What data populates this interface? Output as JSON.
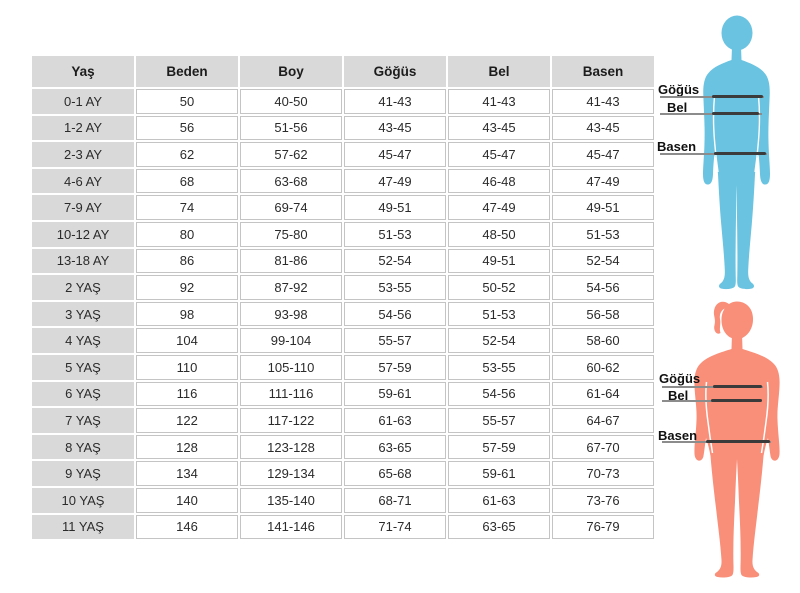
{
  "chart_data": {
    "type": "table",
    "columns": [
      "Yaş",
      "Beden",
      "Boy",
      "Göğüs",
      "Bel",
      "Basen"
    ],
    "rows": [
      [
        "0-1 AY",
        "50",
        "40-50",
        "41-43",
        "41-43",
        "41-43"
      ],
      [
        "1-2 AY",
        "56",
        "51-56",
        "43-45",
        "43-45",
        "43-45"
      ],
      [
        "2-3 AY",
        "62",
        "57-62",
        "45-47",
        "45-47",
        "45-47"
      ],
      [
        "4-6 AY",
        "68",
        "63-68",
        "47-49",
        "46-48",
        "47-49"
      ],
      [
        "7-9 AY",
        "74",
        "69-74",
        "49-51",
        "47-49",
        "49-51"
      ],
      [
        "10-12 AY",
        "80",
        "75-80",
        "51-53",
        "48-50",
        "51-53"
      ],
      [
        "13-18 AY",
        "86",
        "81-86",
        "52-54",
        "49-51",
        "52-54"
      ],
      [
        "2 YAŞ",
        "92",
        "87-92",
        "53-55",
        "50-52",
        "54-56"
      ],
      [
        "3 YAŞ",
        "98",
        "93-98",
        "54-56",
        "51-53",
        "56-58"
      ],
      [
        "4 YAŞ",
        "104",
        "99-104",
        "55-57",
        "52-54",
        "58-60"
      ],
      [
        "5 YAŞ",
        "110",
        "105-110",
        "57-59",
        "53-55",
        "60-62"
      ],
      [
        "6 YAŞ",
        "116",
        "111-116",
        "59-61",
        "54-56",
        "61-64"
      ],
      [
        "7 YAŞ",
        "122",
        "117-122",
        "61-63",
        "55-57",
        "64-67"
      ],
      [
        "8 YAŞ",
        "128",
        "123-128",
        "63-65",
        "57-59",
        "67-70"
      ],
      [
        "9 YAŞ",
        "134",
        "129-134",
        "65-68",
        "59-61",
        "70-73"
      ],
      [
        "10 YAŞ",
        "140",
        "135-140",
        "68-71",
        "61-63",
        "73-76"
      ],
      [
        "11 YAŞ",
        "146",
        "141-146",
        "71-74",
        "63-65",
        "76-79"
      ]
    ]
  },
  "figures": [
    {
      "id": "child-silhouette",
      "color": "#69c3e1",
      "measurements": [
        {
          "label": "Göğüs"
        },
        {
          "label": "Bel"
        },
        {
          "label": "Basen"
        }
      ]
    },
    {
      "id": "girl-silhouette",
      "color": "#f98e79",
      "measurements": [
        {
          "label": "Göğüs"
        },
        {
          "label": "Bel"
        },
        {
          "label": "Basen"
        }
      ]
    }
  ],
  "colors": {
    "header_bg": "#d9d9d9",
    "cell_border": "#c4c4c4",
    "line": "#3b3b3b",
    "line_thin": "#8c8c8c"
  }
}
